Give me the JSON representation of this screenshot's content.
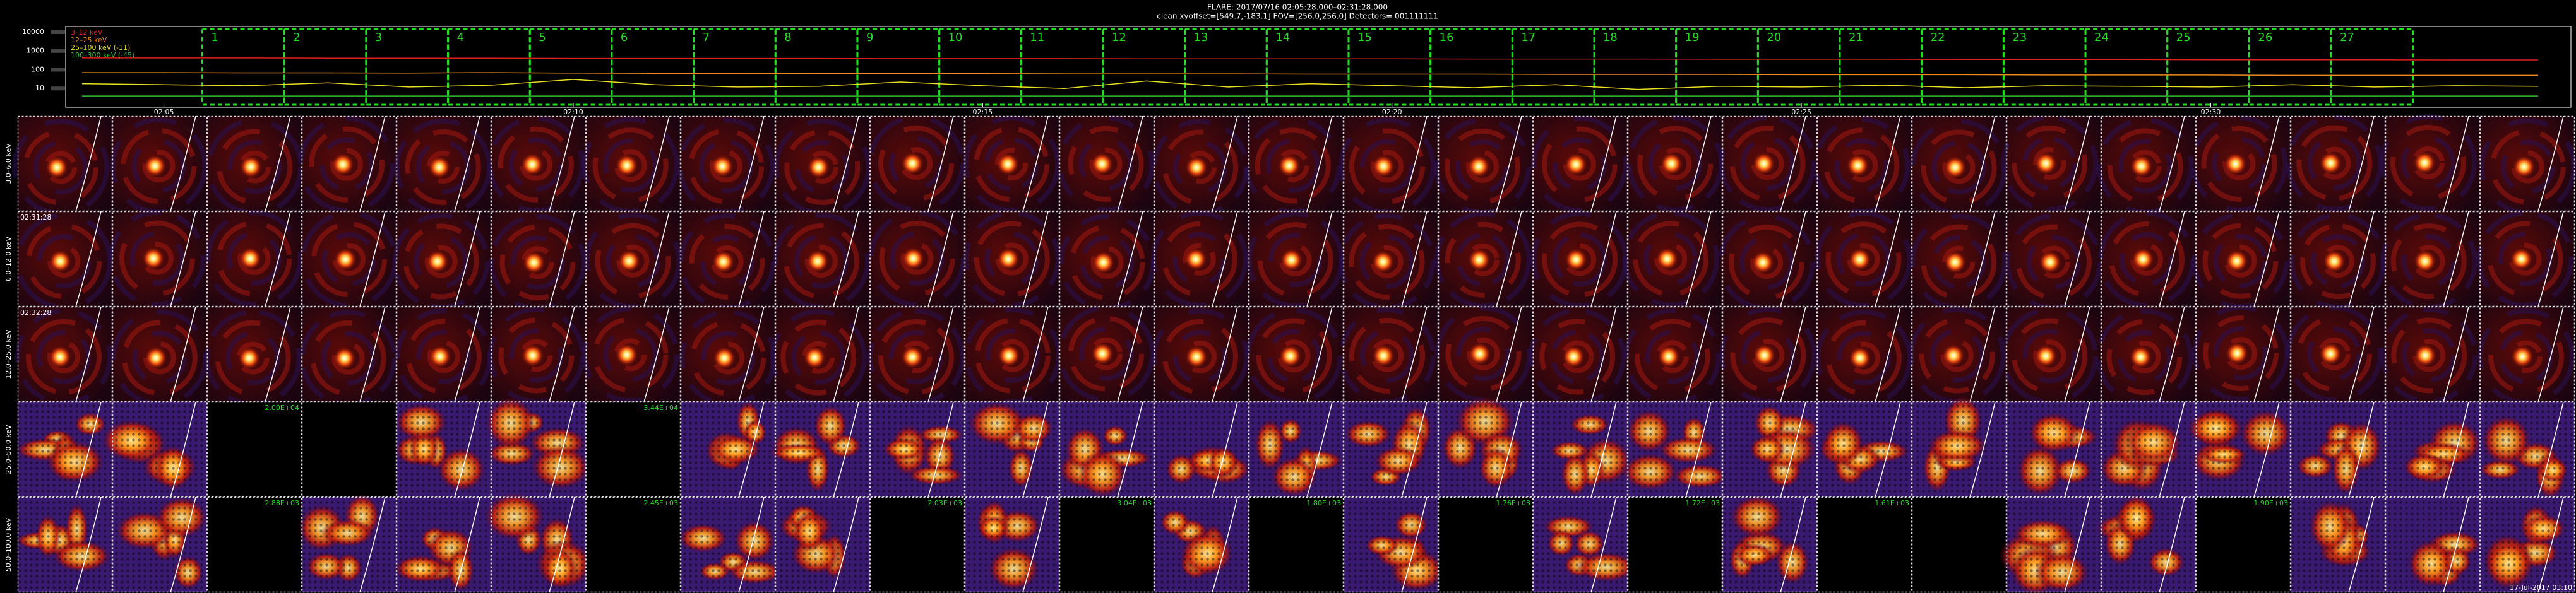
{
  "header": {
    "line1": "FLARE: 2017/07/16 02:05:28.000–02:31:28.000",
    "line2": "clean    xyoffset=[549.7,-183.1]    FOV=[256.0,256.0]    Detectors= 001111111"
  },
  "lightcurve": {
    "type": "line",
    "log_scale": true,
    "ylim": [
      1,
      20000
    ],
    "yticks": [
      10,
      100,
      1000,
      10000
    ],
    "xlim": [
      3.8,
      34.4
    ],
    "xticks": [
      {
        "value": 5,
        "label": "02:05"
      },
      {
        "value": 10,
        "label": "02:10"
      },
      {
        "value": 15,
        "label": "02:15"
      },
      {
        "value": 20,
        "label": "02:20"
      },
      {
        "value": 25,
        "label": "02:25"
      },
      {
        "value": 30,
        "label": "02:30"
      }
    ],
    "x": [
      4,
      5,
      6,
      7,
      8,
      9,
      10,
      11,
      12,
      13,
      14,
      15,
      16,
      17,
      18,
      19,
      20,
      21,
      22,
      23,
      24,
      25,
      26,
      27,
      28,
      29,
      30,
      31,
      32,
      33,
      34
    ],
    "series": [
      {
        "name": "3–12 keV",
        "color": "#e0201c",
        "values": [
          420,
          420,
          420,
          410,
          410,
          410,
          400,
          400,
          400,
          400,
          390,
          390,
          390,
          380,
          380,
          380,
          380,
          370,
          370,
          370,
          360,
          360,
          360,
          350,
          350,
          350,
          340,
          340,
          340,
          330,
          330
        ]
      },
      {
        "name": "12–25 keV",
        "color": "#f08a1c",
        "values": [
          70,
          70,
          68,
          68,
          66,
          70,
          66,
          64,
          64,
          62,
          62,
          62,
          60,
          60,
          60,
          58,
          58,
          58,
          56,
          56,
          56,
          54,
          54,
          54,
          52,
          52,
          52,
          50,
          50,
          50,
          50
        ]
      },
      {
        "name": "25–100 keV (-11)",
        "color": "#e8e020",
        "values": [
          18,
          16,
          14,
          20,
          12,
          15,
          30,
          16,
          12,
          13,
          22,
          14,
          10,
          25,
          12,
          18,
          14,
          11,
          16,
          9,
          13,
          12,
          15,
          11,
          14,
          13,
          12,
          16,
          12,
          14,
          13
        ]
      },
      {
        "name": "100–300 keV (-45)",
        "color": "#30c030",
        "values": [
          4,
          4,
          4,
          4,
          4,
          4,
          4,
          4,
          4,
          4,
          4,
          4,
          4,
          4,
          4,
          4,
          4,
          4,
          4,
          4,
          4,
          4,
          4,
          4,
          4,
          4,
          4,
          4,
          4,
          4,
          4
        ]
      }
    ],
    "interval_labels": [
      "1",
      "2",
      "3",
      "4",
      "5",
      "6",
      "7",
      "8",
      "9",
      "10",
      "11",
      "12",
      "13",
      "14",
      "15",
      "16",
      "17",
      "18",
      "19",
      "20",
      "21",
      "22",
      "23",
      "24",
      "25",
      "26",
      "27"
    ],
    "interval_edges": [
      5.47,
      6.47,
      7.47,
      8.47,
      9.47,
      10.47,
      11.47,
      12.47,
      13.47,
      14.47,
      15.47,
      16.47,
      17.47,
      18.47,
      19.47,
      20.47,
      21.47,
      22.47,
      23.47,
      24.47,
      25.47,
      26.47,
      27.47,
      28.47,
      29.47,
      30.47,
      31.47,
      32.47
    ]
  },
  "grid": {
    "columns": 27,
    "rows": [
      {
        "label": "3.0–6.0 keV",
        "kind": "thermal",
        "blank_cells": []
      },
      {
        "label": "6.0–12.0 keV",
        "kind": "thermal",
        "note": "02:31:28",
        "blank_cells": []
      },
      {
        "label": "12.0–25.0 keV",
        "kind": "thermal",
        "note": "02:32:28",
        "blank_cells": []
      },
      {
        "label": "25.0–50.0 keV",
        "kind": "nonthermal",
        "blank_cells": [
          {
            "column": 3,
            "label": "2.00E+04"
          },
          {
            "column": 4
          },
          {
            "column": 7,
            "label": "3.44E+04"
          }
        ]
      },
      {
        "label": "50.0–100.0 keV",
        "kind": "nonthermal",
        "blank_cells": [
          {
            "column": 3,
            "label": "2.88E+03"
          },
          {
            "column": 7,
            "label": "2.45E+03"
          },
          {
            "column": 10,
            "label": "2.03E+03"
          },
          {
            "column": 12,
            "label": "3.04E+03"
          },
          {
            "column": 14,
            "label": "1.80E+03"
          },
          {
            "column": 16,
            "label": "1.76E+03"
          },
          {
            "column": 18,
            "label": "1.72E+03"
          },
          {
            "column": 20,
            "label": "1.61E+03"
          },
          {
            "column": 21
          },
          {
            "column": 24,
            "label": "1.90E+03"
          }
        ]
      }
    ],
    "footer": "17-Jul-2017 03:10"
  }
}
